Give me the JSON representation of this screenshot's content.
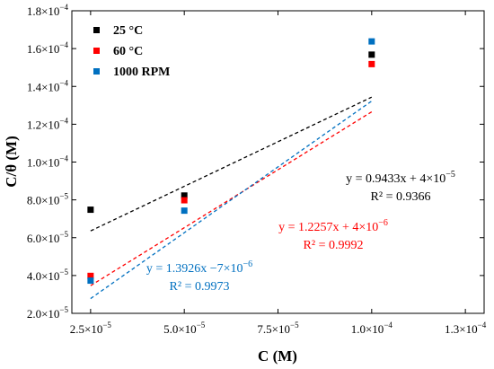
{
  "chart_data": {
    "type": "scatter",
    "xlabel": "C (M)",
    "ylabel": "C/θ (M)",
    "xlim": [
      2e-05,
      0.00013
    ],
    "ylim": [
      2e-05,
      0.00018
    ],
    "x_ticks": [
      {
        "value": 2.5e-05,
        "mantissa": "2.5",
        "exp": "−5"
      },
      {
        "value": 5e-05,
        "mantissa": "5.0",
        "exp": "−5"
      },
      {
        "value": 7.5e-05,
        "mantissa": "7.5",
        "exp": "−5"
      },
      {
        "value": 0.0001,
        "mantissa": "1.0",
        "exp": "−4"
      },
      {
        "value": 0.000125,
        "mantissa": "1.3",
        "exp": "−4"
      }
    ],
    "y_ticks": [
      {
        "value": 2e-05,
        "mantissa": "2.0",
        "exp": "−5"
      },
      {
        "value": 4e-05,
        "mantissa": "4.0",
        "exp": "−5"
      },
      {
        "value": 6e-05,
        "mantissa": "6.0",
        "exp": "−5"
      },
      {
        "value": 8e-05,
        "mantissa": "8.0",
        "exp": "−5"
      },
      {
        "value": 0.0001,
        "mantissa": "1.0",
        "exp": "−4"
      },
      {
        "value": 0.00012,
        "mantissa": "1.2",
        "exp": "−4"
      },
      {
        "value": 0.00014,
        "mantissa": "1.4",
        "exp": "−4"
      },
      {
        "value": 0.00016,
        "mantissa": "1.6",
        "exp": "−4"
      },
      {
        "value": 0.00018,
        "mantissa": "1.8",
        "exp": "−4"
      }
    ],
    "legend_position": "top-left",
    "grid": false,
    "series": [
      {
        "name": "25 °C",
        "color": "#000000",
        "x": [
          2.5e-05,
          5e-05,
          0.0001
        ],
        "y": [
          7.48e-05,
          8.23e-05,
          0.0001568
        ],
        "fit": {
          "slope": 0.9433,
          "intercept": 4e-05
        },
        "equation": "y = 0.9433x + 4×10",
        "equation_exp": "−5",
        "r2": "R² = 0.9366"
      },
      {
        "name": "60 °C",
        "color": "#ff0000",
        "x": [
          2.5e-05,
          5e-05,
          0.0001
        ],
        "y": [
          3.98e-05,
          7.98e-05,
          0.0001518
        ],
        "fit": {
          "slope": 1.2257,
          "intercept": 4e-06
        },
        "equation": "y = 1.2257x + 4×10",
        "equation_exp": "−6",
        "r2": "R² = 0.9992"
      },
      {
        "name": "1000 RPM",
        "color": "#0070c0",
        "x": [
          2.5e-05,
          5e-05,
          0.0001
        ],
        "y": [
          3.73e-05,
          7.43e-05,
          0.0001638
        ],
        "fit": {
          "slope": 1.3926,
          "intercept": -7e-06
        },
        "equation": "y = 1.3926x −7×10",
        "equation_exp": "−6",
        "r2": "R² = 0.9973"
      }
    ]
  }
}
